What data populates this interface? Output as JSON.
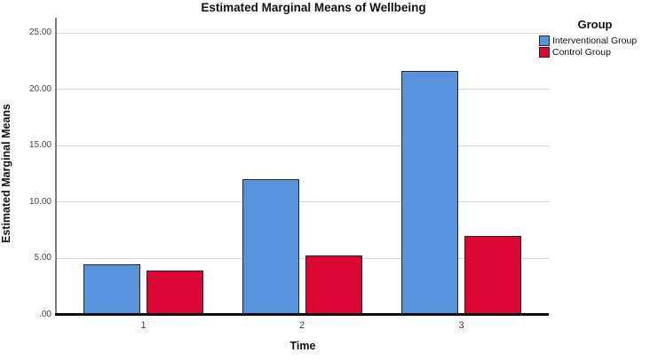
{
  "chart_data": {
    "type": "bar",
    "title": "Estimated Marginal Means of Wellbeing",
    "xlabel": "Time",
    "ylabel": "Estimated Marginal Means",
    "categories": [
      "1",
      "2",
      "3"
    ],
    "series": [
      {
        "name": "Interventional Group",
        "color": "#5794DB",
        "values": [
          4.5,
          12.0,
          21.6
        ]
      },
      {
        "name": "Control Group",
        "color": "#DB0632",
        "values": [
          3.9,
          5.3,
          7.0
        ]
      }
    ],
    "ylim": [
      0,
      25
    ],
    "yticks": [
      {
        "value": 0,
        "label": ".00"
      },
      {
        "value": 5,
        "label": "5.00"
      },
      {
        "value": 10,
        "label": "10.00"
      },
      {
        "value": 15,
        "label": "15.00"
      },
      {
        "value": 20,
        "label": "20.00"
      },
      {
        "value": 25,
        "label": "25.00"
      }
    ],
    "legend_title": "Group",
    "legend_position": "top-right",
    "grid": true
  },
  "colors": {
    "gridline": "#d8d8d8",
    "axis_line": "#7d7d7d",
    "baseline": "#0d0d0d",
    "bar_border": "#262626",
    "tick_text": "#444444"
  }
}
